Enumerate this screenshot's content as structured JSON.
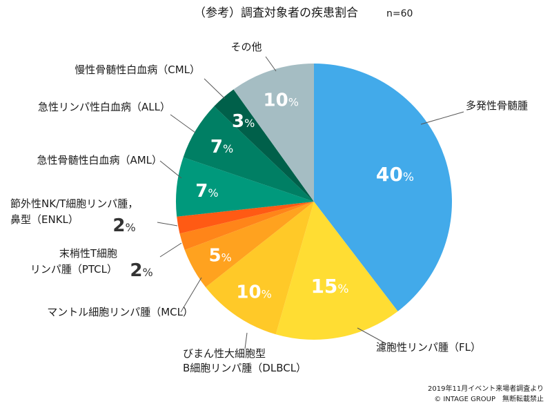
{
  "chart_data": {
    "type": "pie",
    "title": "（参考）調査対象者の疾患割合",
    "subtitle": "n=60",
    "unit": "%",
    "slices": [
      {
        "label": "多発性骨髄腫",
        "value": 40,
        "color": "#42AAEA"
      },
      {
        "label": "濾胞性リンパ腫（FL）",
        "value": 15,
        "color": "#FFDD33"
      },
      {
        "label": "びまん性大細胞型\nB細胞リンパ腫（DLBCL）",
        "value": 10,
        "color": "#FFC928"
      },
      {
        "label": "マントル細胞リンパ腫（MCL）",
        "value": 5,
        "color": "#FFA21F"
      },
      {
        "label": "末梢性T細胞\nリンパ腫（PTCL）",
        "value": 2,
        "color": "#FF8519"
      },
      {
        "label": "節外性NK/T細胞リンパ腫，\n鼻型（ENKL）",
        "value": 2,
        "color": "#FF5A14"
      },
      {
        "label": "急性骨髄性白血病（AML）",
        "value": 7,
        "color": "#00997C"
      },
      {
        "label": "急性リンパ性白血病（ALL）",
        "value": 7,
        "color": "#007F64"
      },
      {
        "label": "慢性骨髄性白血病（CML）",
        "value": 3,
        "color": "#00604A"
      },
      {
        "label": "その他",
        "value": 10,
        "color": "#A5BDC3"
      }
    ]
  },
  "footer": {
    "source": "2019年11月イベント来場者調査より",
    "copyright": "© INTAGE GROUP　無断転載禁止"
  }
}
